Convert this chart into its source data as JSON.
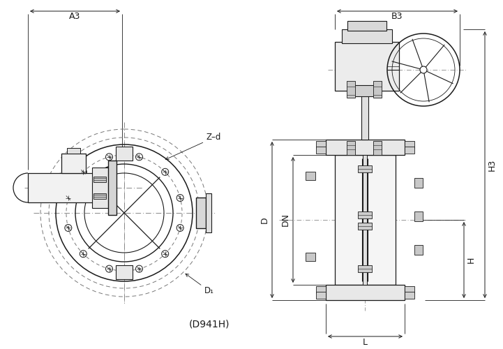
{
  "title": "(D941H)",
  "bg_color": "#ffffff",
  "line_color": "#1a1a1a",
  "dim_color": "#1a1a1a",
  "dash_color": "#555555",
  "labels": {
    "A3": "A3",
    "B3": "B3",
    "Zd": "Z–d",
    "D1": "D₁",
    "D": "D",
    "DN": "DN",
    "H3": "H3",
    "H": "H",
    "L": "L"
  },
  "figsize": [
    7.21,
    5.0
  ],
  "dpi": 100
}
